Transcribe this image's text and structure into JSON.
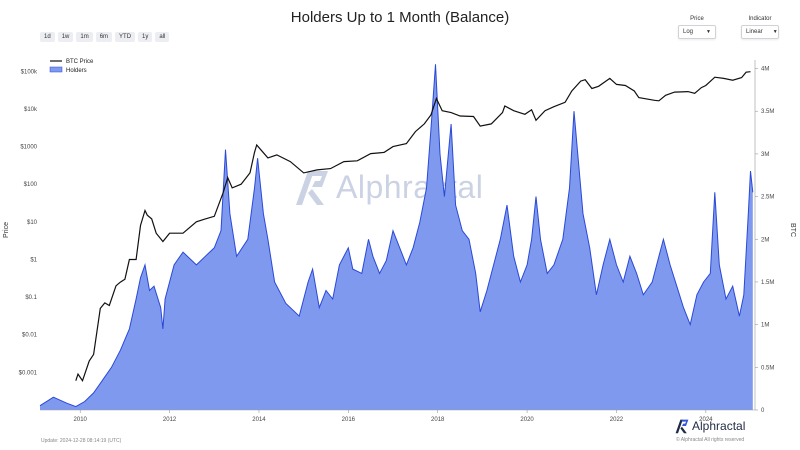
{
  "header": {
    "title": "Holders Up to 1 Month (Balance)"
  },
  "range_buttons": [
    "1d",
    "1w",
    "1m",
    "6m",
    "YTD",
    "1y",
    "all"
  ],
  "controls": {
    "price": {
      "label": "Price",
      "value": "Log"
    },
    "indicator": {
      "label": "Indicator",
      "value": "Linear"
    }
  },
  "footer": {
    "update": "Update: 2024-12-28 08:14:19 (UTC)",
    "brand": "Alphractal",
    "copyright": "© Alphractal All rights reserved"
  },
  "watermark": {
    "text": "Alphractal"
  },
  "colors": {
    "price_line": "#111111",
    "holders_fill": "#7f99ee",
    "holders_line": "#2a49d6"
  },
  "chart_data": {
    "type": "area",
    "title": "Holders Up to 1 Month (Balance)",
    "xlabel": "",
    "ylabel_left": "Price",
    "ylabel_right": "BTC",
    "x_ticks": [
      "2010",
      "2012",
      "2014",
      "2016",
      "2018",
      "2020",
      "2022",
      "2024"
    ],
    "y_left_ticks": [
      "$100k",
      "$10k",
      "$1000",
      "$100",
      "$10",
      "$1",
      "$0.1",
      "$0.01",
      "$0.001"
    ],
    "y_left_scale": "log",
    "y_left_range": [
      0.0001,
      200000
    ],
    "y_right_ticks": [
      "4M",
      "3.5M",
      "3M",
      "2.5M",
      "2M",
      "1.5M",
      "1M",
      "0.5M",
      "0"
    ],
    "y_right_range": [
      0,
      4100000
    ],
    "x_range": [
      2009.1,
      2025.1
    ],
    "legend": {
      "position": "top-left",
      "entries": [
        "BTC Price",
        "Holders"
      ]
    },
    "grid": false,
    "series": [
      {
        "name": "BTC Price",
        "axis": "left",
        "points": [
          [
            2009.9,
            0.0006
          ],
          [
            2009.95,
            0.0009
          ],
          [
            2010.05,
            0.0006
          ],
          [
            2010.2,
            0.002
          ],
          [
            2010.3,
            0.003
          ],
          [
            2010.45,
            0.05
          ],
          [
            2010.55,
            0.07
          ],
          [
            2010.65,
            0.06
          ],
          [
            2010.8,
            0.2
          ],
          [
            2010.9,
            0.25
          ],
          [
            2011.0,
            0.3
          ],
          [
            2011.1,
            1
          ],
          [
            2011.25,
            1
          ],
          [
            2011.35,
            8
          ],
          [
            2011.45,
            20
          ],
          [
            2011.5,
            15
          ],
          [
            2011.6,
            12
          ],
          [
            2011.7,
            5
          ],
          [
            2011.85,
            3
          ],
          [
            2012.0,
            5
          ],
          [
            2012.3,
            5
          ],
          [
            2012.6,
            10
          ],
          [
            2012.8,
            12
          ],
          [
            2013.0,
            14
          ],
          [
            2013.2,
            60
          ],
          [
            2013.3,
            150
          ],
          [
            2013.4,
            80
          ],
          [
            2013.6,
            100
          ],
          [
            2013.8,
            200
          ],
          [
            2013.9,
            700
          ],
          [
            2013.95,
            1100
          ],
          [
            2014.05,
            800
          ],
          [
            2014.2,
            500
          ],
          [
            2014.4,
            600
          ],
          [
            2014.7,
            400
          ],
          [
            2015.0,
            200
          ],
          [
            2015.3,
            240
          ],
          [
            2015.6,
            260
          ],
          [
            2015.9,
            400
          ],
          [
            2016.2,
            420
          ],
          [
            2016.5,
            650
          ],
          [
            2016.8,
            700
          ],
          [
            2017.0,
            1000
          ],
          [
            2017.3,
            1200
          ],
          [
            2017.5,
            2500
          ],
          [
            2017.7,
            4000
          ],
          [
            2017.85,
            7000
          ],
          [
            2017.97,
            19000
          ],
          [
            2018.1,
            9000
          ],
          [
            2018.3,
            8000
          ],
          [
            2018.5,
            6500
          ],
          [
            2018.8,
            6300
          ],
          [
            2018.95,
            3500
          ],
          [
            2019.2,
            4000
          ],
          [
            2019.45,
            8000
          ],
          [
            2019.5,
            12000
          ],
          [
            2019.7,
            9000
          ],
          [
            2019.95,
            7200
          ],
          [
            2020.1,
            9500
          ],
          [
            2020.2,
            5000
          ],
          [
            2020.4,
            9000
          ],
          [
            2020.6,
            11500
          ],
          [
            2020.85,
            15000
          ],
          [
            2021.0,
            30000
          ],
          [
            2021.2,
            55000
          ],
          [
            2021.3,
            60000
          ],
          [
            2021.45,
            35000
          ],
          [
            2021.6,
            40000
          ],
          [
            2021.85,
            65000
          ],
          [
            2022.0,
            45000
          ],
          [
            2022.2,
            42000
          ],
          [
            2022.4,
            30000
          ],
          [
            2022.5,
            20000
          ],
          [
            2022.85,
            17000
          ],
          [
            2022.95,
            16500
          ],
          [
            2023.1,
            23000
          ],
          [
            2023.3,
            28000
          ],
          [
            2023.6,
            29000
          ],
          [
            2023.75,
            26000
          ],
          [
            2023.9,
            37000
          ],
          [
            2024.0,
            42000
          ],
          [
            2024.2,
            70000
          ],
          [
            2024.4,
            65000
          ],
          [
            2024.6,
            58000
          ],
          [
            2024.8,
            68000
          ],
          [
            2024.9,
            95000
          ],
          [
            2025.0,
            98000
          ]
        ]
      },
      {
        "name": "Holders",
        "axis": "right",
        "points": [
          [
            2009.1,
            50000
          ],
          [
            2009.4,
            150000
          ],
          [
            2009.7,
            80000
          ],
          [
            2009.9,
            40000
          ],
          [
            2010.1,
            100000
          ],
          [
            2010.3,
            200000
          ],
          [
            2010.5,
            350000
          ],
          [
            2010.7,
            500000
          ],
          [
            2010.9,
            700000
          ],
          [
            2011.1,
            950000
          ],
          [
            2011.25,
            1300000
          ],
          [
            2011.35,
            1550000
          ],
          [
            2011.45,
            1700000
          ],
          [
            2011.55,
            1400000
          ],
          [
            2011.65,
            1450000
          ],
          [
            2011.8,
            1200000
          ],
          [
            2011.85,
            950000
          ],
          [
            2011.9,
            1300000
          ],
          [
            2012.1,
            1700000
          ],
          [
            2012.3,
            1850000
          ],
          [
            2012.6,
            1700000
          ],
          [
            2012.8,
            1800000
          ],
          [
            2013.0,
            1900000
          ],
          [
            2013.15,
            2100000
          ],
          [
            2013.25,
            3050000
          ],
          [
            2013.35,
            2300000
          ],
          [
            2013.5,
            1800000
          ],
          [
            2013.75,
            2000000
          ],
          [
            2013.9,
            2600000
          ],
          [
            2013.97,
            2950000
          ],
          [
            2014.1,
            2300000
          ],
          [
            2014.2,
            2000000
          ],
          [
            2014.35,
            1500000
          ],
          [
            2014.6,
            1250000
          ],
          [
            2014.9,
            1100000
          ],
          [
            2015.1,
            1500000
          ],
          [
            2015.2,
            1650000
          ],
          [
            2015.35,
            1200000
          ],
          [
            2015.5,
            1400000
          ],
          [
            2015.65,
            1300000
          ],
          [
            2015.8,
            1700000
          ],
          [
            2016.0,
            1900000
          ],
          [
            2016.1,
            1650000
          ],
          [
            2016.3,
            1600000
          ],
          [
            2016.45,
            2000000
          ],
          [
            2016.55,
            1800000
          ],
          [
            2016.7,
            1600000
          ],
          [
            2016.85,
            1750000
          ],
          [
            2017.0,
            2100000
          ],
          [
            2017.15,
            1900000
          ],
          [
            2017.3,
            1700000
          ],
          [
            2017.45,
            1900000
          ],
          [
            2017.6,
            2200000
          ],
          [
            2017.75,
            2600000
          ],
          [
            2017.85,
            3300000
          ],
          [
            2017.95,
            4050000
          ],
          [
            2018.05,
            3000000
          ],
          [
            2018.15,
            2500000
          ],
          [
            2018.3,
            3350000
          ],
          [
            2018.4,
            2400000
          ],
          [
            2018.55,
            2100000
          ],
          [
            2018.7,
            2000000
          ],
          [
            2018.85,
            1600000
          ],
          [
            2018.95,
            1150000
          ],
          [
            2019.1,
            1400000
          ],
          [
            2019.25,
            1700000
          ],
          [
            2019.4,
            2000000
          ],
          [
            2019.55,
            2400000
          ],
          [
            2019.7,
            1800000
          ],
          [
            2019.85,
            1500000
          ],
          [
            2020.0,
            1700000
          ],
          [
            2020.1,
            2000000
          ],
          [
            2020.2,
            2500000
          ],
          [
            2020.3,
            2000000
          ],
          [
            2020.45,
            1600000
          ],
          [
            2020.6,
            1700000
          ],
          [
            2020.8,
            2000000
          ],
          [
            2020.95,
            2600000
          ],
          [
            2021.05,
            3500000
          ],
          [
            2021.15,
            2900000
          ],
          [
            2021.25,
            2300000
          ],
          [
            2021.4,
            1900000
          ],
          [
            2021.55,
            1350000
          ],
          [
            2021.7,
            1700000
          ],
          [
            2021.85,
            2000000
          ],
          [
            2022.0,
            1700000
          ],
          [
            2022.15,
            1500000
          ],
          [
            2022.3,
            1800000
          ],
          [
            2022.45,
            1600000
          ],
          [
            2022.6,
            1350000
          ],
          [
            2022.8,
            1500000
          ],
          [
            2022.95,
            1800000
          ],
          [
            2023.05,
            2000000
          ],
          [
            2023.2,
            1700000
          ],
          [
            2023.35,
            1450000
          ],
          [
            2023.5,
            1200000
          ],
          [
            2023.65,
            1000000
          ],
          [
            2023.8,
            1350000
          ],
          [
            2023.95,
            1500000
          ],
          [
            2024.1,
            1600000
          ],
          [
            2024.2,
            2550000
          ],
          [
            2024.3,
            1700000
          ],
          [
            2024.45,
            1300000
          ],
          [
            2024.6,
            1450000
          ],
          [
            2024.75,
            1100000
          ],
          [
            2024.85,
            1350000
          ],
          [
            2024.95,
            2300000
          ],
          [
            2025.0,
            2800000
          ],
          [
            2025.05,
            2550000
          ]
        ]
      }
    ]
  }
}
